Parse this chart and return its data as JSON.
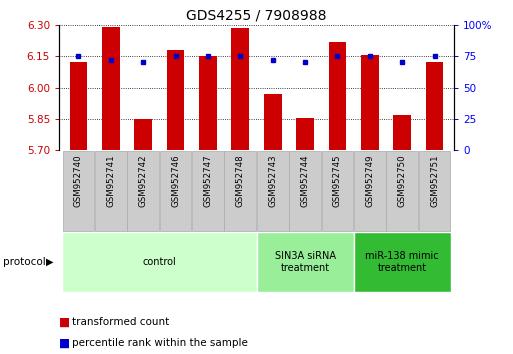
{
  "title": "GDS4255 / 7908988",
  "samples": [
    "GSM952740",
    "GSM952741",
    "GSM952742",
    "GSM952746",
    "GSM952747",
    "GSM952748",
    "GSM952743",
    "GSM952744",
    "GSM952745",
    "GSM952749",
    "GSM952750",
    "GSM952751"
  ],
  "red_values": [
    6.12,
    6.29,
    5.85,
    6.18,
    6.15,
    6.285,
    5.97,
    5.855,
    6.22,
    6.155,
    5.87,
    6.12
  ],
  "blue_values": [
    75,
    72,
    70,
    75,
    75,
    75,
    72,
    70,
    75,
    75,
    70,
    75
  ],
  "ylim_left": [
    5.7,
    6.3
  ],
  "ylim_right": [
    0,
    100
  ],
  "yticks_left": [
    5.7,
    5.85,
    6.0,
    6.15,
    6.3
  ],
  "yticks_right": [
    0,
    25,
    50,
    75,
    100
  ],
  "protocol_groups": [
    {
      "label": "control",
      "start": 0,
      "end": 5,
      "color": "#ccffcc"
    },
    {
      "label": "SIN3A siRNA\ntreatment",
      "start": 6,
      "end": 8,
      "color": "#99ee99"
    },
    {
      "label": "miR-138 mimic\ntreatment",
      "start": 9,
      "end": 11,
      "color": "#33bb33"
    }
  ],
  "bar_color": "#cc0000",
  "dot_color": "#0000cc",
  "bar_width": 0.55,
  "title_fontsize": 10,
  "left_tick_color": "#cc0000",
  "right_tick_color": "#0000ff",
  "sample_box_color": "#cccccc",
  "sample_box_edge": "#aaaaaa"
}
